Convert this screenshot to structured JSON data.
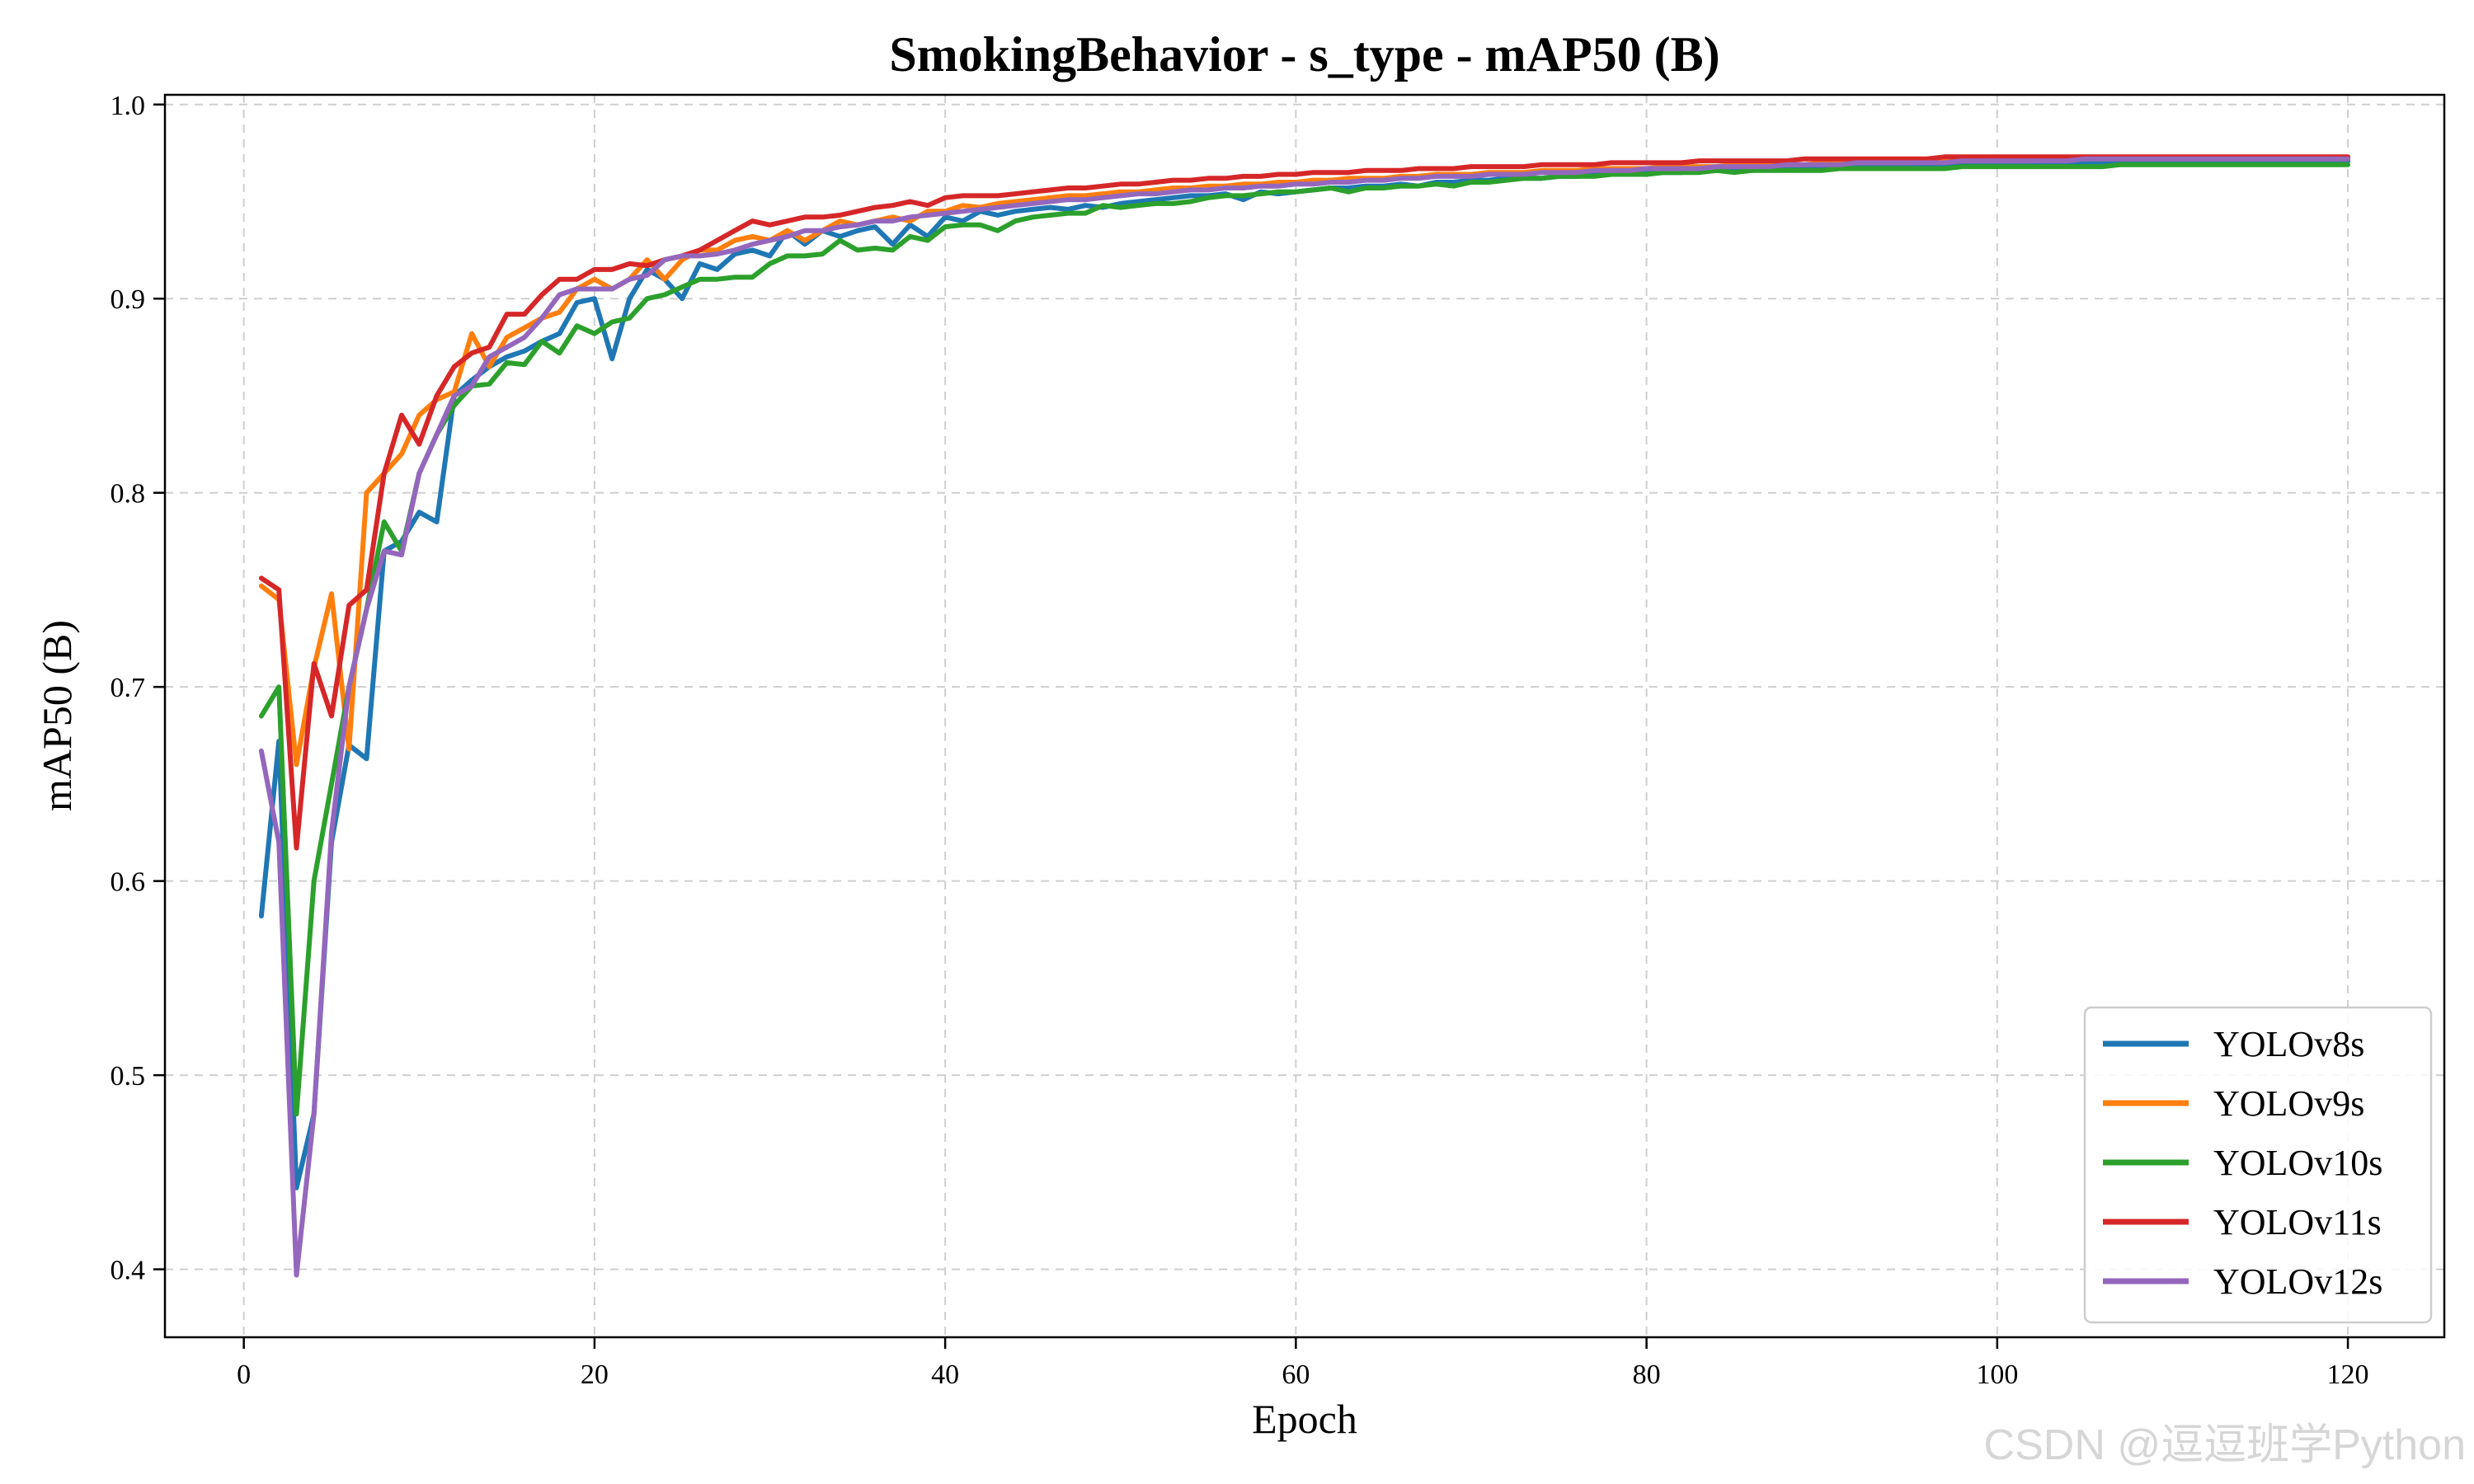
{
  "chart_data": {
    "type": "line",
    "title": "SmokingBehavior - s_type - mAP50 (B)",
    "xlabel": "Epoch",
    "ylabel": "mAP50 (B)",
    "xlim": [
      -4.5,
      125.5
    ],
    "ylim": [
      0.365,
      1.005
    ],
    "xticks": [
      0,
      20,
      40,
      60,
      80,
      100,
      120
    ],
    "yticks": [
      0.4,
      0.5,
      0.6,
      0.7,
      0.8,
      0.9,
      1.0
    ],
    "xtick_labels": [
      "0",
      "20",
      "40",
      "60",
      "80",
      "100",
      "120"
    ],
    "ytick_labels": [
      "0.4",
      "0.5",
      "0.6",
      "0.7",
      "0.8",
      "0.9",
      "1.0"
    ],
    "grid": true,
    "legend_position": "bottom-right",
    "x_start": 1,
    "series": [
      {
        "name": "YOLOv8s",
        "color": "#1f77b4",
        "values": [
          0.582,
          0.672,
          0.442,
          0.48,
          0.62,
          0.67,
          0.663,
          0.77,
          0.775,
          0.79,
          0.785,
          0.85,
          0.858,
          0.865,
          0.87,
          0.873,
          0.878,
          0.882,
          0.898,
          0.9,
          0.869,
          0.9,
          0.915,
          0.91,
          0.9,
          0.918,
          0.915,
          0.923,
          0.925,
          0.922,
          0.935,
          0.928,
          0.935,
          0.932,
          0.935,
          0.937,
          0.928,
          0.938,
          0.932,
          0.942,
          0.94,
          0.945,
          0.943,
          0.945,
          0.946,
          0.947,
          0.946,
          0.948,
          0.947,
          0.949,
          0.95,
          0.951,
          0.952,
          0.953,
          0.953,
          0.954,
          0.951,
          0.955,
          0.954,
          0.955,
          0.956,
          0.957,
          0.957,
          0.958,
          0.958,
          0.959,
          0.958,
          0.96,
          0.96,
          0.961,
          0.961,
          0.962,
          0.962,
          0.962,
          0.963,
          0.963,
          0.964,
          0.964,
          0.964,
          0.965,
          0.965,
          0.965,
          0.966,
          0.966,
          0.966,
          0.966,
          0.967,
          0.967,
          0.967,
          0.967,
          0.968,
          0.968,
          0.968,
          0.968,
          0.968,
          0.969,
          0.969,
          0.969,
          0.969,
          0.969,
          0.97,
          0.97,
          0.97,
          0.97,
          0.97,
          0.97,
          0.97,
          0.97,
          0.971,
          0.971,
          0.971,
          0.971,
          0.971,
          0.971,
          0.971,
          0.971,
          0.971,
          0.971,
          0.971,
          0.971
        ]
      },
      {
        "name": "YOLOv9s",
        "color": "#ff7f0e",
        "values": [
          0.752,
          0.745,
          0.66,
          0.71,
          0.748,
          0.668,
          0.8,
          0.81,
          0.82,
          0.84,
          0.848,
          0.852,
          0.882,
          0.865,
          0.88,
          0.885,
          0.89,
          0.893,
          0.905,
          0.91,
          0.905,
          0.91,
          0.92,
          0.91,
          0.92,
          0.925,
          0.925,
          0.93,
          0.932,
          0.93,
          0.935,
          0.93,
          0.935,
          0.94,
          0.938,
          0.94,
          0.942,
          0.94,
          0.945,
          0.945,
          0.948,
          0.947,
          0.949,
          0.95,
          0.951,
          0.952,
          0.953,
          0.953,
          0.954,
          0.955,
          0.955,
          0.956,
          0.957,
          0.957,
          0.958,
          0.958,
          0.959,
          0.959,
          0.96,
          0.96,
          0.961,
          0.961,
          0.962,
          0.962,
          0.962,
          0.963,
          0.963,
          0.964,
          0.964,
          0.964,
          0.965,
          0.965,
          0.965,
          0.966,
          0.966,
          0.966,
          0.967,
          0.967,
          0.967,
          0.967,
          0.968,
          0.968,
          0.968,
          0.968,
          0.969,
          0.969,
          0.969,
          0.969,
          0.969,
          0.97,
          0.97,
          0.97,
          0.97,
          0.97,
          0.97,
          0.971,
          0.971,
          0.971,
          0.971,
          0.971,
          0.971,
          0.971,
          0.972,
          0.972,
          0.972,
          0.972,
          0.972,
          0.972,
          0.972,
          0.972,
          0.972,
          0.972,
          0.972,
          0.972,
          0.972,
          0.972,
          0.972,
          0.972,
          0.972,
          0.972
        ]
      },
      {
        "name": "YOLOv10s",
        "color": "#2ca02c",
        "values": [
          0.685,
          0.7,
          0.48,
          0.6,
          0.65,
          0.7,
          0.74,
          0.785,
          0.77,
          0.81,
          0.83,
          0.845,
          0.855,
          0.856,
          0.867,
          0.866,
          0.878,
          0.872,
          0.886,
          0.882,
          0.888,
          0.89,
          0.9,
          0.902,
          0.906,
          0.91,
          0.91,
          0.911,
          0.911,
          0.918,
          0.922,
          0.922,
          0.923,
          0.93,
          0.925,
          0.926,
          0.925,
          0.932,
          0.93,
          0.937,
          0.938,
          0.938,
          0.935,
          0.94,
          0.942,
          0.943,
          0.944,
          0.944,
          0.948,
          0.947,
          0.948,
          0.949,
          0.949,
          0.95,
          0.952,
          0.953,
          0.953,
          0.954,
          0.955,
          0.955,
          0.956,
          0.957,
          0.955,
          0.957,
          0.957,
          0.958,
          0.958,
          0.959,
          0.958,
          0.96,
          0.96,
          0.961,
          0.962,
          0.962,
          0.963,
          0.963,
          0.963,
          0.964,
          0.964,
          0.964,
          0.965,
          0.965,
          0.965,
          0.966,
          0.965,
          0.966,
          0.966,
          0.966,
          0.966,
          0.966,
          0.967,
          0.967,
          0.967,
          0.967,
          0.967,
          0.967,
          0.967,
          0.968,
          0.968,
          0.968,
          0.968,
          0.968,
          0.968,
          0.968,
          0.968,
          0.968,
          0.969,
          0.969,
          0.969,
          0.969,
          0.969,
          0.969,
          0.969,
          0.969,
          0.969,
          0.969,
          0.969,
          0.969,
          0.969,
          0.969
        ]
      },
      {
        "name": "YOLOv11s",
        "color": "#d62728",
        "values": [
          0.756,
          0.75,
          0.617,
          0.712,
          0.685,
          0.742,
          0.75,
          0.81,
          0.84,
          0.825,
          0.85,
          0.865,
          0.872,
          0.875,
          0.892,
          0.892,
          0.902,
          0.91,
          0.91,
          0.915,
          0.915,
          0.918,
          0.917,
          0.92,
          0.922,
          0.925,
          0.93,
          0.935,
          0.94,
          0.938,
          0.94,
          0.942,
          0.942,
          0.943,
          0.945,
          0.947,
          0.948,
          0.95,
          0.948,
          0.952,
          0.953,
          0.953,
          0.953,
          0.954,
          0.955,
          0.956,
          0.957,
          0.957,
          0.958,
          0.959,
          0.959,
          0.96,
          0.961,
          0.961,
          0.962,
          0.962,
          0.963,
          0.963,
          0.964,
          0.964,
          0.965,
          0.965,
          0.965,
          0.966,
          0.966,
          0.966,
          0.967,
          0.967,
          0.967,
          0.968,
          0.968,
          0.968,
          0.968,
          0.969,
          0.969,
          0.969,
          0.969,
          0.97,
          0.97,
          0.97,
          0.97,
          0.97,
          0.971,
          0.971,
          0.971,
          0.971,
          0.971,
          0.971,
          0.972,
          0.972,
          0.972,
          0.972,
          0.972,
          0.972,
          0.972,
          0.972,
          0.973,
          0.973,
          0.973,
          0.973,
          0.973,
          0.973,
          0.973,
          0.973,
          0.973,
          0.973,
          0.973,
          0.973,
          0.973,
          0.973,
          0.973,
          0.973,
          0.973,
          0.973,
          0.973,
          0.973,
          0.973,
          0.973,
          0.973,
          0.973
        ]
      },
      {
        "name": "YOLOv12s",
        "color": "#9467bd",
        "values": [
          0.667,
          0.62,
          0.397,
          0.48,
          0.625,
          0.7,
          0.74,
          0.77,
          0.768,
          0.81,
          0.83,
          0.85,
          0.855,
          0.87,
          0.875,
          0.88,
          0.89,
          0.902,
          0.905,
          0.905,
          0.905,
          0.91,
          0.912,
          0.92,
          0.922,
          0.922,
          0.923,
          0.925,
          0.928,
          0.93,
          0.932,
          0.935,
          0.935,
          0.937,
          0.938,
          0.94,
          0.94,
          0.942,
          0.943,
          0.944,
          0.945,
          0.946,
          0.947,
          0.948,
          0.949,
          0.95,
          0.951,
          0.951,
          0.952,
          0.953,
          0.954,
          0.954,
          0.955,
          0.956,
          0.956,
          0.957,
          0.957,
          0.958,
          0.958,
          0.959,
          0.959,
          0.96,
          0.96,
          0.961,
          0.961,
          0.962,
          0.962,
          0.963,
          0.963,
          0.963,
          0.964,
          0.964,
          0.964,
          0.965,
          0.965,
          0.965,
          0.966,
          0.966,
          0.966,
          0.967,
          0.967,
          0.967,
          0.967,
          0.968,
          0.968,
          0.968,
          0.968,
          0.969,
          0.969,
          0.969,
          0.969,
          0.97,
          0.97,
          0.97,
          0.97,
          0.97,
          0.97,
          0.971,
          0.971,
          0.971,
          0.971,
          0.971,
          0.971,
          0.971,
          0.972,
          0.972,
          0.972,
          0.972,
          0.972,
          0.972,
          0.972,
          0.972,
          0.972,
          0.972,
          0.972,
          0.972,
          0.972,
          0.972,
          0.972,
          0.972
        ]
      }
    ]
  },
  "watermark": "CSDN @逗逗班学Python"
}
